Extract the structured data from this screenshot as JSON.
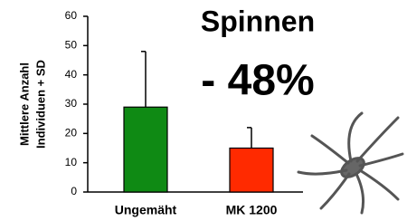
{
  "chart_data": {
    "type": "bar",
    "title": "Spinnen",
    "annotation": "- 48%",
    "ylabel": [
      "Mittlere Anzahl",
      "Individuen + SD"
    ],
    "categories": [
      "Ungemäht",
      "MK 1200"
    ],
    "values": [
      29,
      15
    ],
    "errors": [
      19,
      7
    ],
    "colors": [
      "#0f8a14",
      "#ff2a00"
    ],
    "ylim": [
      0,
      60
    ],
    "yticks": [
      0,
      10,
      20,
      30,
      40,
      50,
      60
    ]
  }
}
